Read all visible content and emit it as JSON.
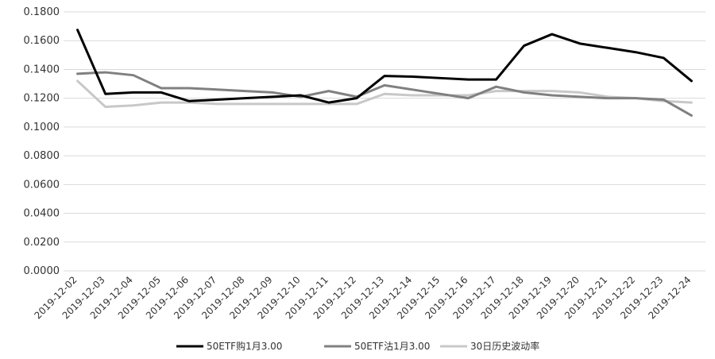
{
  "chart_data": {
    "type": "line",
    "title": "",
    "xlabel": "",
    "ylabel": "",
    "ylim": [
      0,
      0.18
    ],
    "ytick_step": 0.02,
    "grid": "horizontal",
    "legend_position": "bottom",
    "categories": [
      "2019-12-02",
      "2019-12-03",
      "2019-12-04",
      "2019-12-05",
      "2019-12-06",
      "2019-12-07",
      "2019-12-08",
      "2019-12-09",
      "2019-12-10",
      "2019-12-11",
      "2019-12-12",
      "2019-12-13",
      "2019-12-14",
      "2019-12-15",
      "2019-12-16",
      "2019-12-17",
      "2019-12-18",
      "2019-12-19",
      "2019-12-20",
      "2019-12-21",
      "2019-12-22",
      "2019-12-23",
      "2019-12-24"
    ],
    "y_tick_labels": [
      "0.0000",
      "0.0200",
      "0.0400",
      "0.0600",
      "0.0800",
      "0.1000",
      "0.1200",
      "0.1400",
      "0.1600",
      "0.1800"
    ],
    "series": [
      {
        "name": "50ETF购1月3.00",
        "color": "#000000",
        "values": [
          0.1675,
          0.123,
          0.124,
          0.124,
          0.118,
          0.119,
          0.12,
          0.121,
          0.122,
          0.117,
          0.12,
          0.1355,
          0.135,
          0.134,
          0.133,
          0.133,
          0.1565,
          0.1645,
          0.158,
          0.155,
          0.152,
          0.148,
          0.132
        ]
      },
      {
        "name": "50ETF沽1月3.00",
        "color": "#808080",
        "values": [
          0.137,
          0.138,
          0.136,
          0.127,
          0.127,
          0.126,
          0.125,
          0.124,
          0.121,
          0.125,
          0.121,
          0.129,
          0.126,
          0.123,
          0.12,
          0.128,
          0.124,
          0.122,
          0.121,
          0.12,
          0.12,
          0.119,
          0.108
        ]
      },
      {
        "name": "30日历史波动率",
        "color": "#c8c8c8",
        "values": [
          0.132,
          0.114,
          0.115,
          0.117,
          0.117,
          0.116,
          0.116,
          0.116,
          0.116,
          0.116,
          0.116,
          0.123,
          0.122,
          0.122,
          0.122,
          0.125,
          0.125,
          0.125,
          0.124,
          0.121,
          0.12,
          0.118,
          0.117
        ]
      }
    ]
  }
}
